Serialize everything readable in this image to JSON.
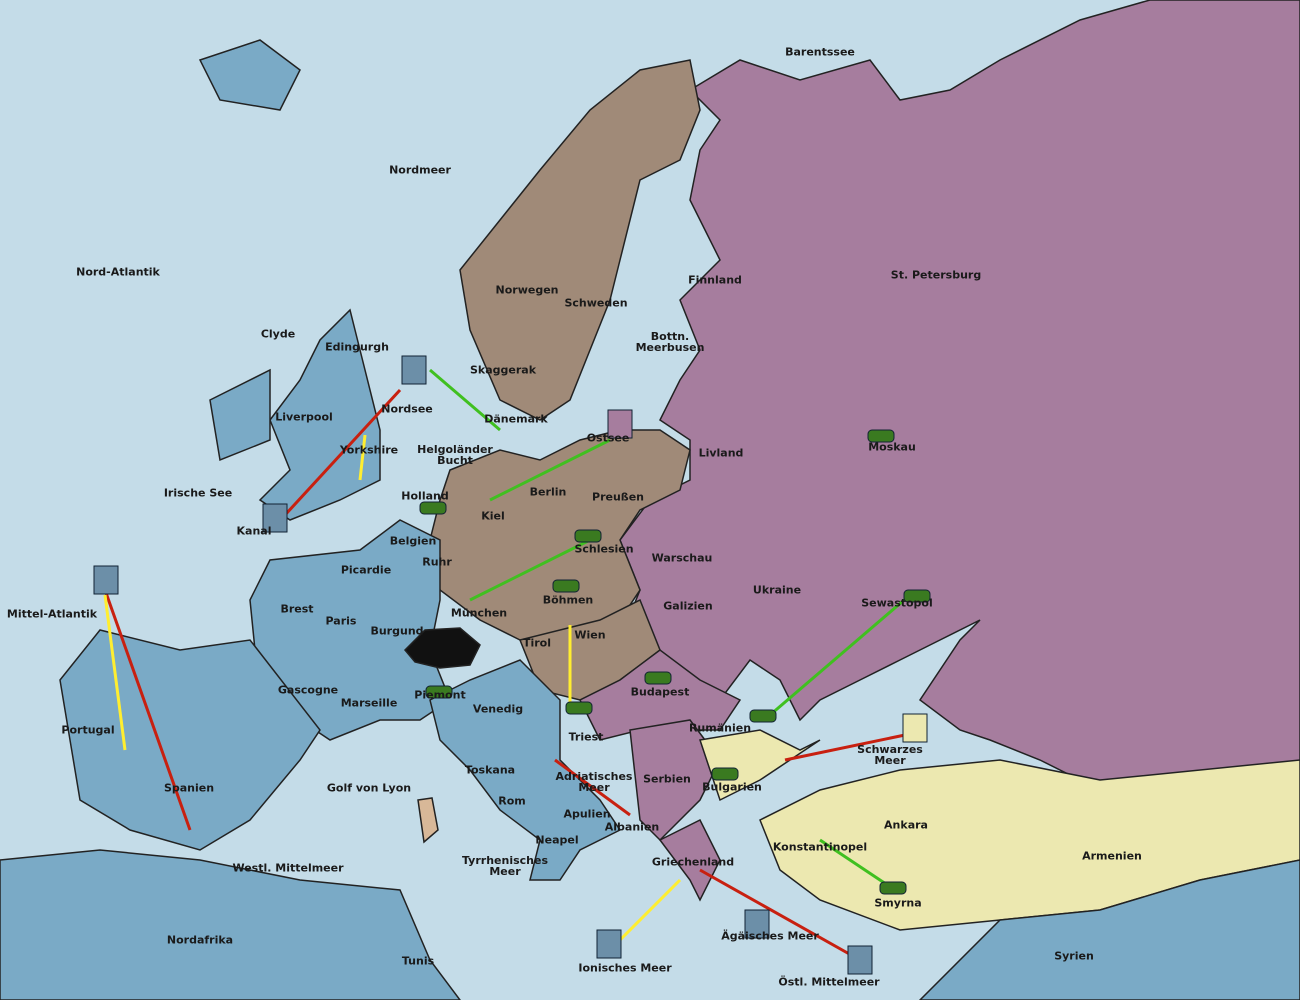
{
  "labels": [
    {
      "text": "Barentssee"
    },
    {
      "text": "Nordmeer"
    },
    {
      "text": "Nord-Atlantik"
    },
    {
      "text": "Finnland"
    },
    {
      "text": "St. Petersburg"
    },
    {
      "text": "Norwegen"
    },
    {
      "text": "Schweden"
    },
    {
      "text": "Clyde"
    },
    {
      "text": "Edingurgh"
    },
    {
      "text": "Bottn.\nMeerbusen"
    },
    {
      "text": "Skaggerak"
    },
    {
      "text": "Liverpool"
    },
    {
      "text": "Nordsee"
    },
    {
      "text": "Dänemark"
    },
    {
      "text": "Ostsee"
    },
    {
      "text": "Livland"
    },
    {
      "text": "Moskau"
    },
    {
      "text": "Yorkshire"
    },
    {
      "text": "Helgoländer\nBucht"
    },
    {
      "text": "Irische See"
    },
    {
      "text": "Holland"
    },
    {
      "text": "Berlin"
    },
    {
      "text": "Preußen"
    },
    {
      "text": "Kanal"
    },
    {
      "text": "Kiel"
    },
    {
      "text": "Belgien"
    },
    {
      "text": "Schlesien"
    },
    {
      "text": "Warschau"
    },
    {
      "text": "Ruhr"
    },
    {
      "text": "Picardie"
    },
    {
      "text": "Ukraine"
    },
    {
      "text": "Böhmen"
    },
    {
      "text": "Brest"
    },
    {
      "text": "Galizien"
    },
    {
      "text": "Sewastopol"
    },
    {
      "text": "Mittel-Atlantik"
    },
    {
      "text": "München"
    },
    {
      "text": "Paris"
    },
    {
      "text": "Burgund"
    },
    {
      "text": "Wien"
    },
    {
      "text": "Tirol"
    },
    {
      "text": "Budapest"
    },
    {
      "text": "Gascogne"
    },
    {
      "text": "Piemont"
    },
    {
      "text": "Marseille"
    },
    {
      "text": "Venedig"
    },
    {
      "text": "Rumänien"
    },
    {
      "text": "Portugal"
    },
    {
      "text": "Triest"
    },
    {
      "text": "Schwarzes\nMeer"
    },
    {
      "text": "Toskana"
    },
    {
      "text": "Adriatisches\nMeer"
    },
    {
      "text": "Serbien"
    },
    {
      "text": "Bulgarien"
    },
    {
      "text": "Spanien"
    },
    {
      "text": "Golf von Lyon"
    },
    {
      "text": "Rom"
    },
    {
      "text": "Apulien"
    },
    {
      "text": "Ankara"
    },
    {
      "text": "Albanien"
    },
    {
      "text": "Neapel"
    },
    {
      "text": "Konstantinopel"
    },
    {
      "text": "Armenien"
    },
    {
      "text": "Griechenland"
    },
    {
      "text": "Westl. Mittelmeer"
    },
    {
      "text": "Tyrrhenisches\nMeer"
    },
    {
      "text": "Smyrna"
    },
    {
      "text": "Ägäisches Meer"
    },
    {
      "text": "Nordafrika"
    },
    {
      "text": "Tunis"
    },
    {
      "text": "Syrien"
    },
    {
      "text": "Ionisches Meer"
    },
    {
      "text": "Östl. Mittelmeer"
    }
  ]
}
